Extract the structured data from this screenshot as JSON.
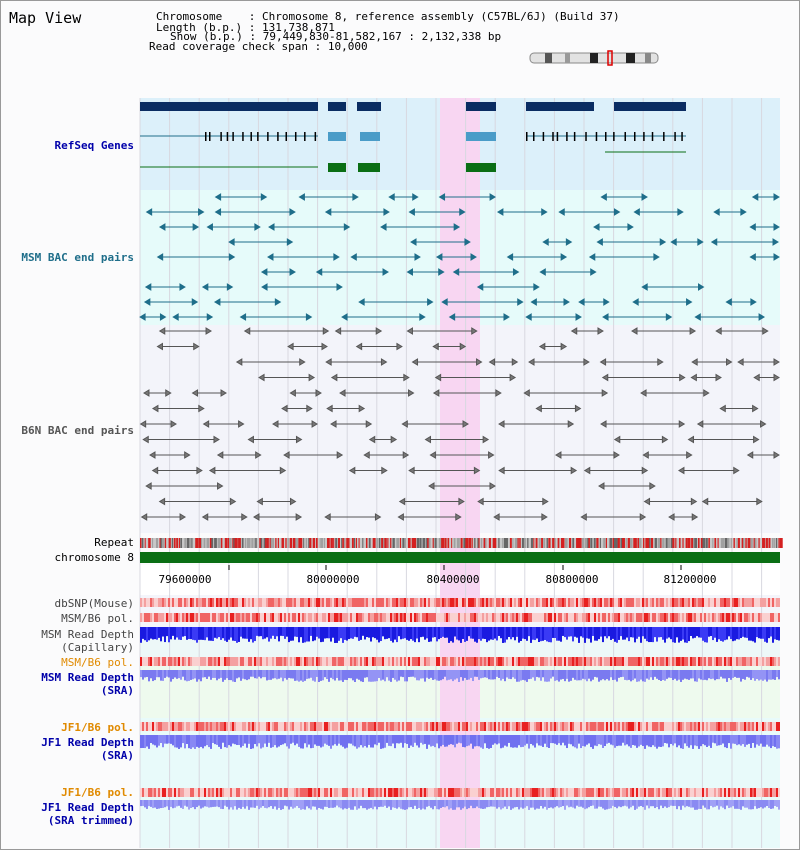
{
  "title": "Map View",
  "header": {
    "chromosome_key": "Chromosome",
    "chromosome_value": "Chromosome 8, reference assembly (C57BL/6J) (Build 37)",
    "length_key": "Length (b.p.)",
    "length_value": "131,738,871",
    "show_key": "Show (b.p.)",
    "show_value": "79,449,830-81,582,167 : 2,132,338 bp",
    "coverage_key": "Read coverage check span",
    "coverage_value": "10,000"
  },
  "tracks": {
    "refseq": "RefSeq Genes",
    "msm_bac": "MSM BAC end pairs",
    "b6n_bac": "B6N BAC end pairs",
    "repeat": "Repeat",
    "chromosome": "chromosome 8",
    "dbsnp": "dbSNP(Mouse)",
    "msm_b6_pol_1": "MSM/B6 pol.",
    "msm_depth_cap_1": "MSM Read Depth",
    "msm_depth_cap_2": "(Capillary)",
    "msm_b6_pol_2": "MSM/B6 pol.",
    "msm_depth_sra_1": "MSM Read Depth",
    "msm_depth_sra_2": "(SRA)",
    "jf1_pol_1": "JF1/B6 pol.",
    "jf1_depth_sra_1": "JF1 Read Depth",
    "jf1_depth_sra_2": "(SRA)",
    "jf1_pol_2": "JF1/B6 pol.",
    "jf1_depth_trim_1": "JF1 Read Depth",
    "jf1_depth_trim_2": "(SRA trimmed)"
  },
  "axis": {
    "ticks": [
      "79600000",
      "80000000",
      "80400000",
      "80800000",
      "81200000"
    ]
  },
  "colors": {
    "refseq_bg": "#dcf0fa",
    "bac_bg": "#e6fbfa",
    "highlight": "#f8d6f2",
    "navy": "#0a2c62",
    "teal": "#1f6e8a",
    "green": "#0a6e14",
    "lightblue": "#4a9cc8",
    "chrom": "#0a6e14",
    "msm_label": "#0000aa",
    "pol_label_orange": "#e08a00",
    "jf1_label": "#0000aa"
  }
}
